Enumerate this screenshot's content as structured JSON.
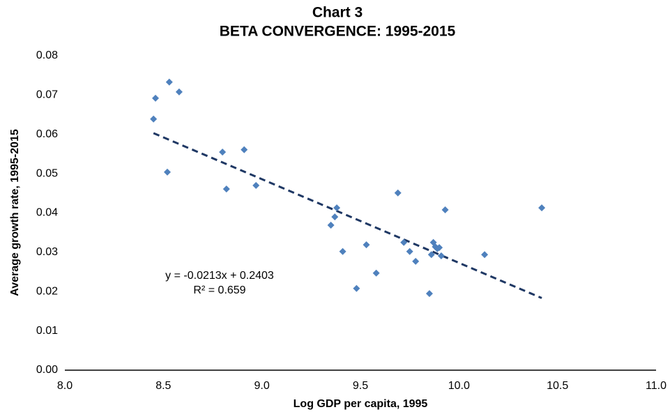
{
  "chart_data": {
    "type": "scatter",
    "title": "Chart 3",
    "subtitle": "BETA CONVERGENCE: 1995-2015",
    "x_label": "Log GDP per capita, 1995",
    "y_label": "Average growth rate, 1995-2015",
    "color": "#4f81bd",
    "x": [
      8.45,
      8.46,
      8.53,
      8.58,
      8.52,
      8.8,
      8.91,
      8.82,
      8.97,
      9.35,
      9.37,
      9.38,
      9.41,
      9.53,
      9.48,
      9.58,
      9.69,
      9.72,
      9.75,
      9.78,
      9.85,
      9.86,
      9.87,
      9.88,
      9.89,
      9.9,
      9.91,
      9.93,
      10.13,
      10.42
    ],
    "y": [
      0.0639,
      0.0692,
      0.0733,
      0.0708,
      0.0504,
      0.0555,
      0.0561,
      0.0461,
      0.047,
      0.0369,
      0.039,
      0.0413,
      0.0302,
      0.0319,
      0.0208,
      0.0247,
      0.0451,
      0.0325,
      0.0302,
      0.0277,
      0.0195,
      0.0294,
      0.0325,
      0.0314,
      0.0309,
      0.0312,
      0.0291,
      0.0408,
      0.0294,
      0.0413
    ],
    "xlim": [
      8,
      11
    ],
    "ylim": [
      0,
      0.08
    ],
    "xticks": [
      {
        "value": 8,
        "label": "8.0"
      },
      8.5,
      {
        "value": 9,
        "label": "9.0"
      },
      9.5,
      {
        "value": 10,
        "label": "10.0"
      },
      10.5,
      {
        "value": 11,
        "label": "11.0"
      }
    ],
    "yticks": [
      {
        "value": 0,
        "label": "0.00"
      },
      0.01,
      0.02,
      0.03,
      0.04,
      0.05,
      0.06,
      0.07,
      0.08
    ],
    "grid": false,
    "trendline": {
      "color": "#1f3864",
      "slope": -0.0213,
      "intercept": 0.2403,
      "r2": 0.659,
      "equation_label": "y = -0.0213x + 0.2403",
      "r2_label": "R² = 0.659"
    }
  }
}
